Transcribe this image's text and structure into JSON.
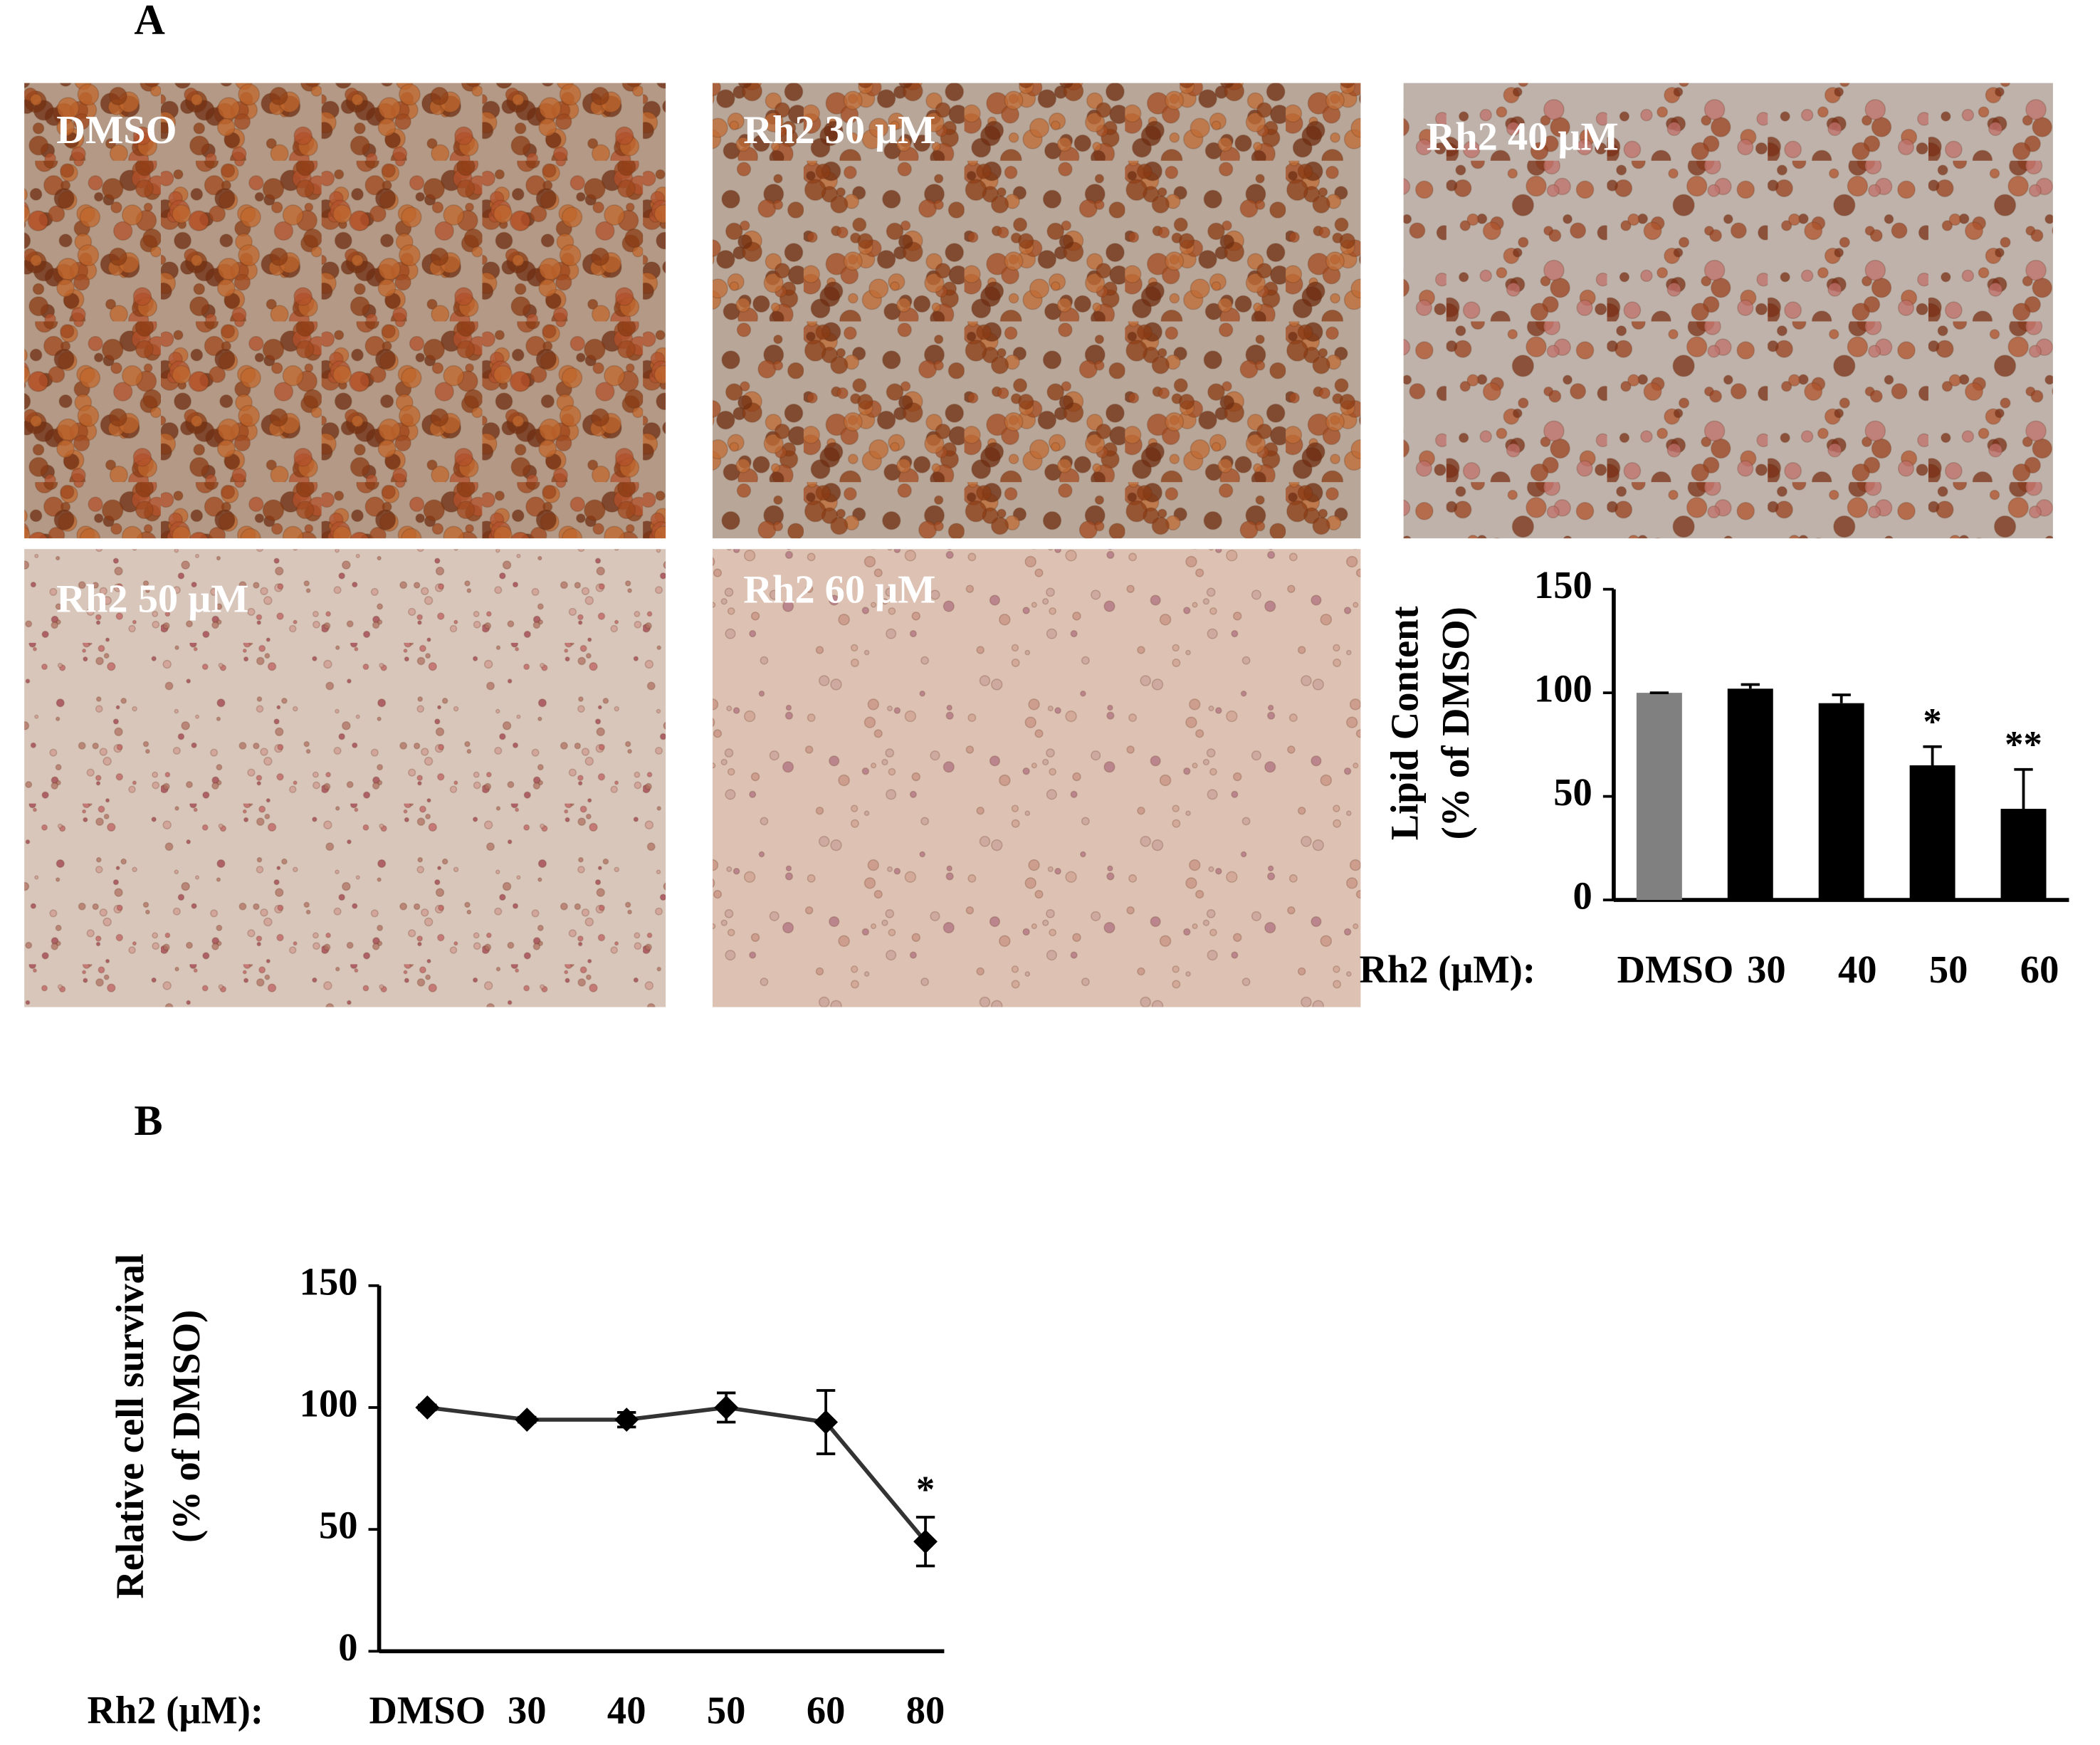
{
  "figure": {
    "panel_labels": [
      "A",
      "B"
    ],
    "images": [
      "DMSO",
      "Rh2 30 μM",
      "Rh2 40 μM",
      "Rh2 50 μM",
      "Rh2 60 μM"
    ]
  },
  "chart_data": [
    {
      "type": "bar",
      "ylabel": [
        "Lipid Content",
        "(% of DMSO)"
      ],
      "xlabel": "Rh2 (μM):",
      "categories": [
        "DMSO",
        "30",
        "40",
        "50",
        "60"
      ],
      "values": [
        100,
        102,
        95,
        65,
        44
      ],
      "errors": [
        0,
        2,
        4,
        9,
        19
      ],
      "significance": [
        null,
        null,
        null,
        "*",
        "**"
      ],
      "colors": [
        "#808080",
        "#000000",
        "#000000",
        "#000000",
        "#000000"
      ],
      "ylim": [
        0,
        150
      ],
      "yticks": [
        0,
        50,
        100,
        150
      ],
      "grid": false
    },
    {
      "type": "line",
      "ylabel": [
        "Relative cell survival",
        "(% of DMSO)"
      ],
      "xlabel": "Rh2 (μM):",
      "categories": [
        "DMSO",
        "30",
        "40",
        "50",
        "60",
        "80"
      ],
      "values": [
        100,
        95,
        95,
        100,
        94,
        45
      ],
      "errors": [
        1,
        1,
        3,
        6,
        13,
        10
      ],
      "significance": [
        null,
        null,
        null,
        null,
        null,
        "*"
      ],
      "color": "#333333",
      "ylim": [
        0,
        150
      ],
      "yticks": [
        0,
        50,
        100,
        150
      ],
      "grid": false
    }
  ]
}
